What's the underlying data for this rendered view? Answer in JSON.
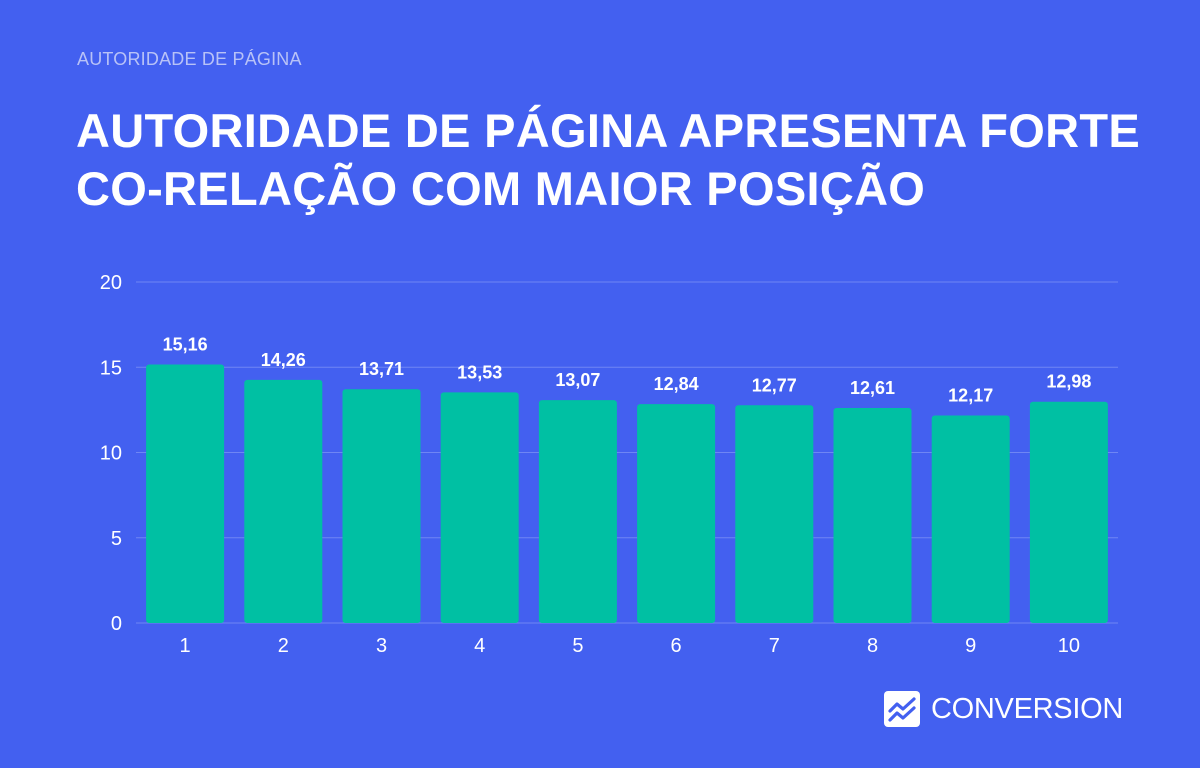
{
  "header": {
    "kicker": "AUTORIDADE DE PÁGINA",
    "title": "AUTORIDADE DE PÁGINA APRESENTA FORTE CO-RELAÇÃO COM MAIOR POSIÇÃO"
  },
  "brand": {
    "name": "CONVERSION",
    "icon": "trend-chart-icon"
  },
  "colors": {
    "background": "#4360f0",
    "bar": "#00c0a3",
    "grid": "#6f86f4",
    "text": "#ffffff",
    "kicker": "#b8c2f7"
  },
  "chart_data": {
    "type": "bar",
    "categories": [
      "1",
      "2",
      "3",
      "4",
      "5",
      "6",
      "7",
      "8",
      "9",
      "10"
    ],
    "values": [
      15.16,
      14.26,
      13.71,
      13.53,
      13.07,
      12.84,
      12.77,
      12.61,
      12.17,
      12.98
    ],
    "data_labels": [
      "15,16",
      "14,26",
      "13,71",
      "13,53",
      "13,07",
      "12,84",
      "12,77",
      "12,61",
      "12,17",
      "12,98"
    ],
    "yticks": [
      "0",
      "5",
      "10",
      "15",
      "20"
    ],
    "ylim": [
      0,
      20
    ],
    "grid": true,
    "legend": "none"
  }
}
